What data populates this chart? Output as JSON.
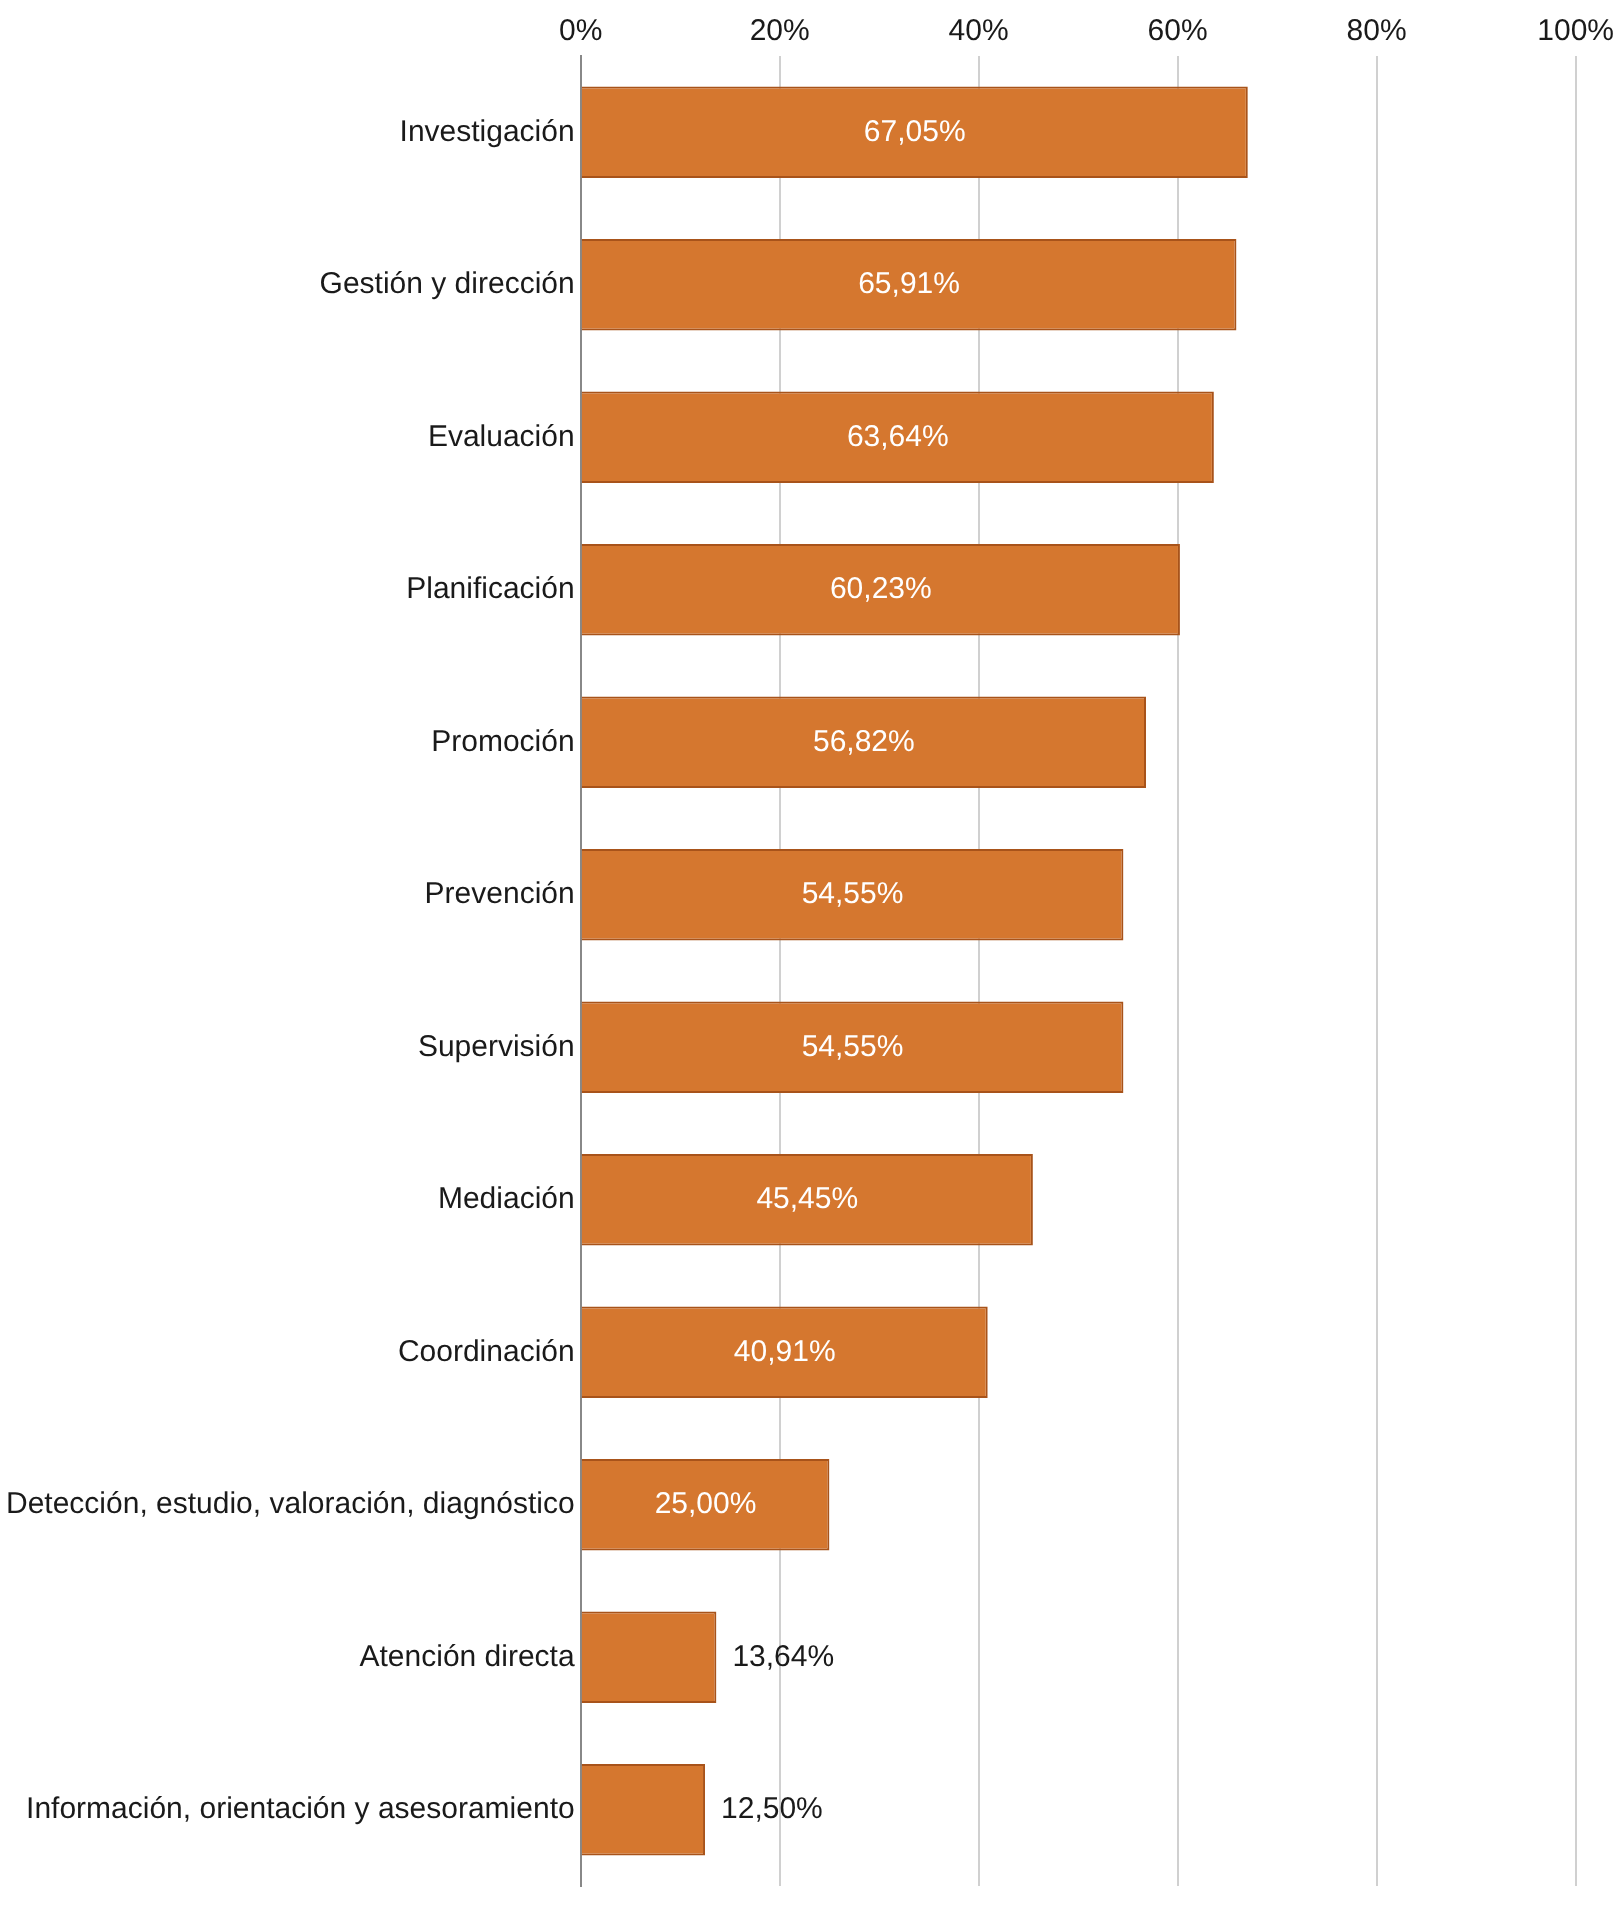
{
  "chart_data": {
    "type": "bar",
    "orientation": "horizontal",
    "categories": [
      "Investigación",
      "Gestión y dirección",
      "Evaluación",
      "Planificación",
      "Promoción",
      "Prevención",
      "Supervisión",
      "Mediación",
      "Coordinación",
      "Detección, estudio, valoración, diagnóstico",
      "Atención directa",
      "Información, orientación y asesoramiento"
    ],
    "values": [
      67.05,
      65.91,
      63.64,
      60.23,
      56.82,
      54.55,
      54.55,
      45.45,
      40.91,
      25.0,
      13.64,
      12.5
    ],
    "value_labels": [
      "67,05%",
      "65,91%",
      "63,64%",
      "60,23%",
      "56,82%",
      "54,55%",
      "54,55%",
      "45,45%",
      "40,91%",
      "25,00%",
      "13,64%",
      "12,50%"
    ],
    "color": "#d5772f",
    "xlim": [
      0,
      100
    ],
    "xticks": [
      {
        "value": 0,
        "label": "0%"
      },
      {
        "value": 20,
        "label": "20%"
      },
      {
        "value": 40,
        "label": "40%"
      },
      {
        "value": 60,
        "label": "60%"
      },
      {
        "value": 80,
        "label": "80%"
      },
      {
        "value": 100,
        "label": "100%"
      }
    ],
    "grid": "x",
    "legend": false
  }
}
